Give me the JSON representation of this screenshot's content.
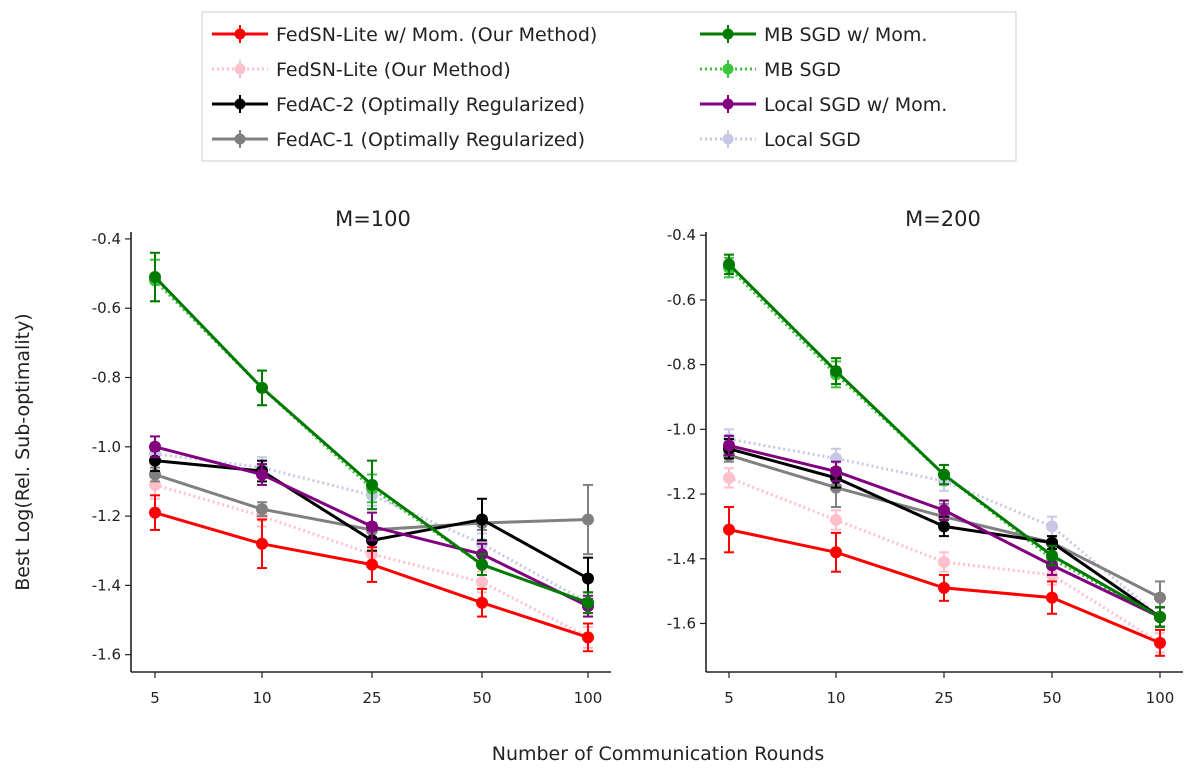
{
  "figure": {
    "xlabel": "Number of Communication Rounds",
    "ylabel": "Best Log(Rel. Sub-optimality)"
  },
  "legend": [
    {
      "key": "fedsn_mom",
      "label": "FedSN-Lite w/ Mom. (Our Method)",
      "color": "#ff0000",
      "dash": "solid"
    },
    {
      "key": "fedsn",
      "label": "FedSN-Lite (Our Method)",
      "color": "#ffc0cb",
      "dash": "dotted"
    },
    {
      "key": "fedac2",
      "label": "FedAC-2 (Optimally Regularized)",
      "color": "#000000",
      "dash": "solid"
    },
    {
      "key": "fedac1",
      "label": "FedAC-1 (Optimally Regularized)",
      "color": "#808080",
      "dash": "solid"
    },
    {
      "key": "mbsgd_mom",
      "label": "MB SGD w/ Mom.",
      "color": "#007a00",
      "dash": "solid"
    },
    {
      "key": "mbsgd",
      "label": "MB SGD",
      "color": "#3cc43c",
      "dash": "dotted"
    },
    {
      "key": "local_mom",
      "label": "Local SGD w/ Mom.",
      "color": "#800080",
      "dash": "solid"
    },
    {
      "key": "local",
      "label": "Local SGD",
      "color": "#c8c8e6",
      "dash": "dotted"
    }
  ],
  "chart_data": [
    {
      "type": "line",
      "title": "M=100",
      "categories": [
        "5",
        "10",
        "25",
        "50",
        "100"
      ],
      "ylim": [
        -1.65,
        -0.38
      ],
      "yticks": [
        -1.6,
        -1.4,
        -1.2,
        -1.0,
        -0.8,
        -0.6,
        -0.4
      ],
      "ytick_labels": [
        "-1.6",
        "-1.4",
        "-1.2",
        "-1.0",
        "-0.8",
        "-0.6",
        "-0.4"
      ],
      "series": [
        {
          "key": "fedsn",
          "name": "FedSN-Lite (Our Method)",
          "values": [
            -1.11,
            -1.2,
            -1.31,
            -1.39,
            -1.55
          ],
          "err": [
            0.04,
            0.03,
            0.03,
            0.03,
            0.03
          ]
        },
        {
          "key": "local",
          "name": "Local SGD",
          "values": [
            -1.02,
            -1.06,
            -1.14,
            -1.28,
            -1.45
          ],
          "err": [
            0.03,
            0.03,
            0.03,
            0.03,
            0.03
          ]
        },
        {
          "key": "mbsgd",
          "name": "MB SGD",
          "values": [
            -0.52,
            -0.83,
            -1.12,
            -1.34,
            -1.45
          ],
          "err": [
            0.06,
            0.05,
            0.04,
            0.03,
            0.03
          ]
        },
        {
          "key": "fedac1",
          "name": "FedAC-1 (Optimally Regularized)",
          "values": [
            -1.08,
            -1.18,
            -1.24,
            -1.22,
            -1.21
          ],
          "err": [
            0.02,
            0.02,
            0.02,
            0.02,
            0.1
          ]
        },
        {
          "key": "fedac2",
          "name": "FedAC-2 (Optimally Regularized)",
          "values": [
            -1.04,
            -1.07,
            -1.27,
            -1.21,
            -1.38
          ],
          "err": [
            0.03,
            0.03,
            0.03,
            0.06,
            0.06
          ]
        },
        {
          "key": "local_mom",
          "name": "Local SGD w/ Mom.",
          "values": [
            -1.0,
            -1.08,
            -1.23,
            -1.31,
            -1.46
          ],
          "err": [
            0.03,
            0.03,
            0.04,
            0.03,
            0.03
          ]
        },
        {
          "key": "mbsgd_mom",
          "name": "MB SGD w/ Mom.",
          "values": [
            -0.51,
            -0.83,
            -1.11,
            -1.34,
            -1.45
          ],
          "err": [
            0.07,
            0.05,
            0.07,
            0.03,
            0.03
          ]
        },
        {
          "key": "fedsn_mom",
          "name": "FedSN-Lite w/ Mom. (Our Method)",
          "values": [
            -1.19,
            -1.28,
            -1.34,
            -1.45,
            -1.55
          ],
          "err": [
            0.05,
            0.07,
            0.05,
            0.04,
            0.04
          ]
        }
      ]
    },
    {
      "type": "line",
      "title": "M=200",
      "categories": [
        "5",
        "10",
        "25",
        "50",
        "100"
      ],
      "ylim": [
        -1.75,
        -0.39
      ],
      "yticks": [
        -1.6,
        -1.4,
        -1.2,
        -1.0,
        -0.8,
        -0.6,
        -0.4
      ],
      "ytick_labels": [
        "-1.6",
        "-1.4",
        "-1.2",
        "-1.0",
        "-0.8",
        "-0.6",
        "-0.4"
      ],
      "series": [
        {
          "key": "fedsn",
          "name": "FedSN-Lite (Our Method)",
          "values": [
            -1.15,
            -1.28,
            -1.41,
            -1.45,
            -1.66
          ],
          "err": [
            0.03,
            0.03,
            0.03,
            0.03,
            0.03
          ]
        },
        {
          "key": "local",
          "name": "Local SGD",
          "values": [
            -1.03,
            -1.09,
            -1.16,
            -1.3,
            -1.58
          ],
          "err": [
            0.03,
            0.03,
            0.03,
            0.03,
            0.03
          ]
        },
        {
          "key": "mbsgd",
          "name": "MB SGD",
          "values": [
            -0.5,
            -0.83,
            -1.14,
            -1.4,
            -1.58
          ],
          "err": [
            0.03,
            0.04,
            0.03,
            0.03,
            0.03
          ]
        },
        {
          "key": "fedac1",
          "name": "FedAC-1 (Optimally Regularized)",
          "values": [
            -1.08,
            -1.18,
            -1.27,
            -1.35,
            -1.52
          ],
          "err": [
            0.02,
            0.06,
            0.04,
            0.02,
            0.05
          ]
        },
        {
          "key": "fedac2",
          "name": "FedAC-2 (Optimally Regularized)",
          "values": [
            -1.06,
            -1.15,
            -1.3,
            -1.35,
            -1.58
          ],
          "err": [
            0.03,
            0.03,
            0.03,
            0.02,
            0.03
          ]
        },
        {
          "key": "local_mom",
          "name": "Local SGD w/ Mom.",
          "values": [
            -1.05,
            -1.13,
            -1.25,
            -1.42,
            -1.58
          ],
          "err": [
            0.03,
            0.03,
            0.03,
            0.03,
            0.03
          ]
        },
        {
          "key": "mbsgd_mom",
          "name": "MB SGD w/ Mom.",
          "values": [
            -0.49,
            -0.82,
            -1.14,
            -1.39,
            -1.58
          ],
          "err": [
            0.03,
            0.04,
            0.03,
            0.03,
            0.03
          ]
        },
        {
          "key": "fedsn_mom",
          "name": "FedSN-Lite w/ Mom. (Our Method)",
          "values": [
            -1.31,
            -1.38,
            -1.49,
            -1.52,
            -1.66
          ],
          "err": [
            0.07,
            0.06,
            0.04,
            0.05,
            0.04
          ]
        }
      ]
    }
  ]
}
